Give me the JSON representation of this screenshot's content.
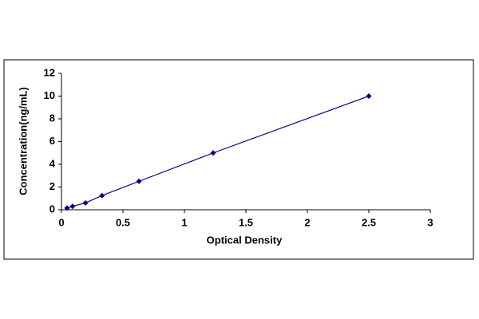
{
  "chart_data": {
    "type": "line",
    "x_label": "Optical Density",
    "y_label": "Concentration(ng/mL)",
    "x": [
      0.045,
      0.09,
      0.195,
      0.33,
      0.63,
      1.234,
      2.5
    ],
    "series": [
      {
        "color": "#000080",
        "values": [
          0.15,
          0.3,
          0.6,
          1.25,
          2.5,
          5,
          10
        ]
      }
    ],
    "xlim": [
      0,
      3
    ],
    "xticks": [
      0,
      0.5,
      1,
      1.5,
      2,
      2.5,
      3
    ],
    "ylim": [
      0,
      12
    ],
    "yticks": [
      0,
      2,
      4,
      6,
      8,
      10,
      12
    ],
    "grid": false
  }
}
